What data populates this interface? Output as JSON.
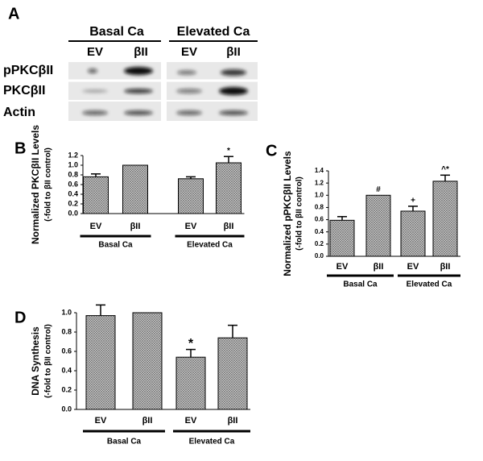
{
  "blot": {
    "letter": "A",
    "groups": [
      "Basal Ca",
      "Elevated Ca"
    ],
    "lanes": [
      "EV",
      "βII",
      "EV",
      "βII"
    ],
    "rows": [
      "pPKCβII",
      "PKCβII",
      "Actin"
    ]
  },
  "chart_data": [
    {
      "type": "bar",
      "letter": "B",
      "ylabel": [
        "Normalized PKCβII Levels",
        "(-fold to βII control)"
      ],
      "categories": [
        "EV",
        "βII",
        "EV",
        "βII"
      ],
      "groups": [
        "Basal Ca",
        "Elevated Ca"
      ],
      "values": [
        0.76,
        1.0,
        0.72,
        1.05
      ],
      "errors": [
        0.06,
        0,
        0.04,
        0.13
      ],
      "annotations": [
        null,
        null,
        null,
        "*"
      ],
      "ylim": [
        0,
        1.2
      ],
      "yticks": [
        {
          "value": 0,
          "label": "0.0"
        },
        0.2,
        0.4,
        0.6,
        0.8,
        {
          "value": 1,
          "label": "1.0"
        },
        1.2
      ]
    },
    {
      "type": "bar",
      "letter": "C",
      "ylabel": [
        "Normalized pPKCβII Levels",
        "(-fold to βII control)"
      ],
      "categories": [
        "EV",
        "βII",
        "EV",
        "βII"
      ],
      "groups": [
        "Basal Ca",
        "Elevated Ca"
      ],
      "values": [
        0.59,
        1.0,
        0.74,
        1.23
      ],
      "errors": [
        0.06,
        0,
        0.08,
        0.1
      ],
      "annotations": [
        null,
        "#",
        "+",
        "^*"
      ],
      "ylim": [
        0,
        1.4
      ],
      "yticks": [
        {
          "value": 0,
          "label": "0.0"
        },
        0.2,
        0.4,
        0.6,
        0.8,
        {
          "value": 1,
          "label": "1.0"
        },
        1.2,
        1.4
      ]
    },
    {
      "type": "bar",
      "letter": "D",
      "ylabel": [
        "DNA Synthesis",
        "(-fold to βII control)"
      ],
      "categories": [
        "EV",
        "βII",
        "EV",
        "βII"
      ],
      "groups": [
        "Basal Ca",
        "Elevated Ca"
      ],
      "values": [
        0.97,
        1.0,
        0.54,
        0.74
      ],
      "errors": [
        0.11,
        0,
        0.08,
        0.13
      ],
      "annotations": [
        null,
        null,
        "*",
        null
      ],
      "ylim": [
        0,
        1.0
      ],
      "yticks": [
        {
          "value": 0,
          "label": "0.0"
        },
        0.2,
        0.4,
        0.6,
        0.8,
        {
          "value": 1,
          "label": "1.0"
        }
      ]
    }
  ]
}
